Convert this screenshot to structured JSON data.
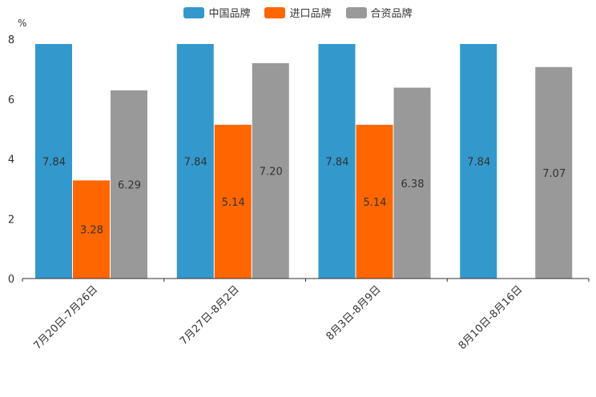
{
  "chart_data": {
    "type": "bar",
    "title": "",
    "ylabel": "%",
    "xlabel": "",
    "ylim": [
      0,
      8
    ],
    "yticks": [
      0,
      2,
      4,
      6,
      8
    ],
    "categories": [
      "7月20日-7月26日",
      "7月27日-8月2日",
      "8月3日-8月9日",
      "8月10日-8月16日"
    ],
    "series": [
      {
        "name": "中国品牌",
        "color": "#3398cc",
        "values": [
          7.84,
          7.84,
          7.84,
          7.84
        ]
      },
      {
        "name": "进口品牌",
        "color": "#ff6600",
        "values": [
          3.28,
          5.14,
          5.14,
          null
        ]
      },
      {
        "name": "合资品牌",
        "color": "#999999",
        "values": [
          6.29,
          7.2,
          6.38,
          7.07
        ]
      }
    ],
    "legend_position": "top-center"
  }
}
